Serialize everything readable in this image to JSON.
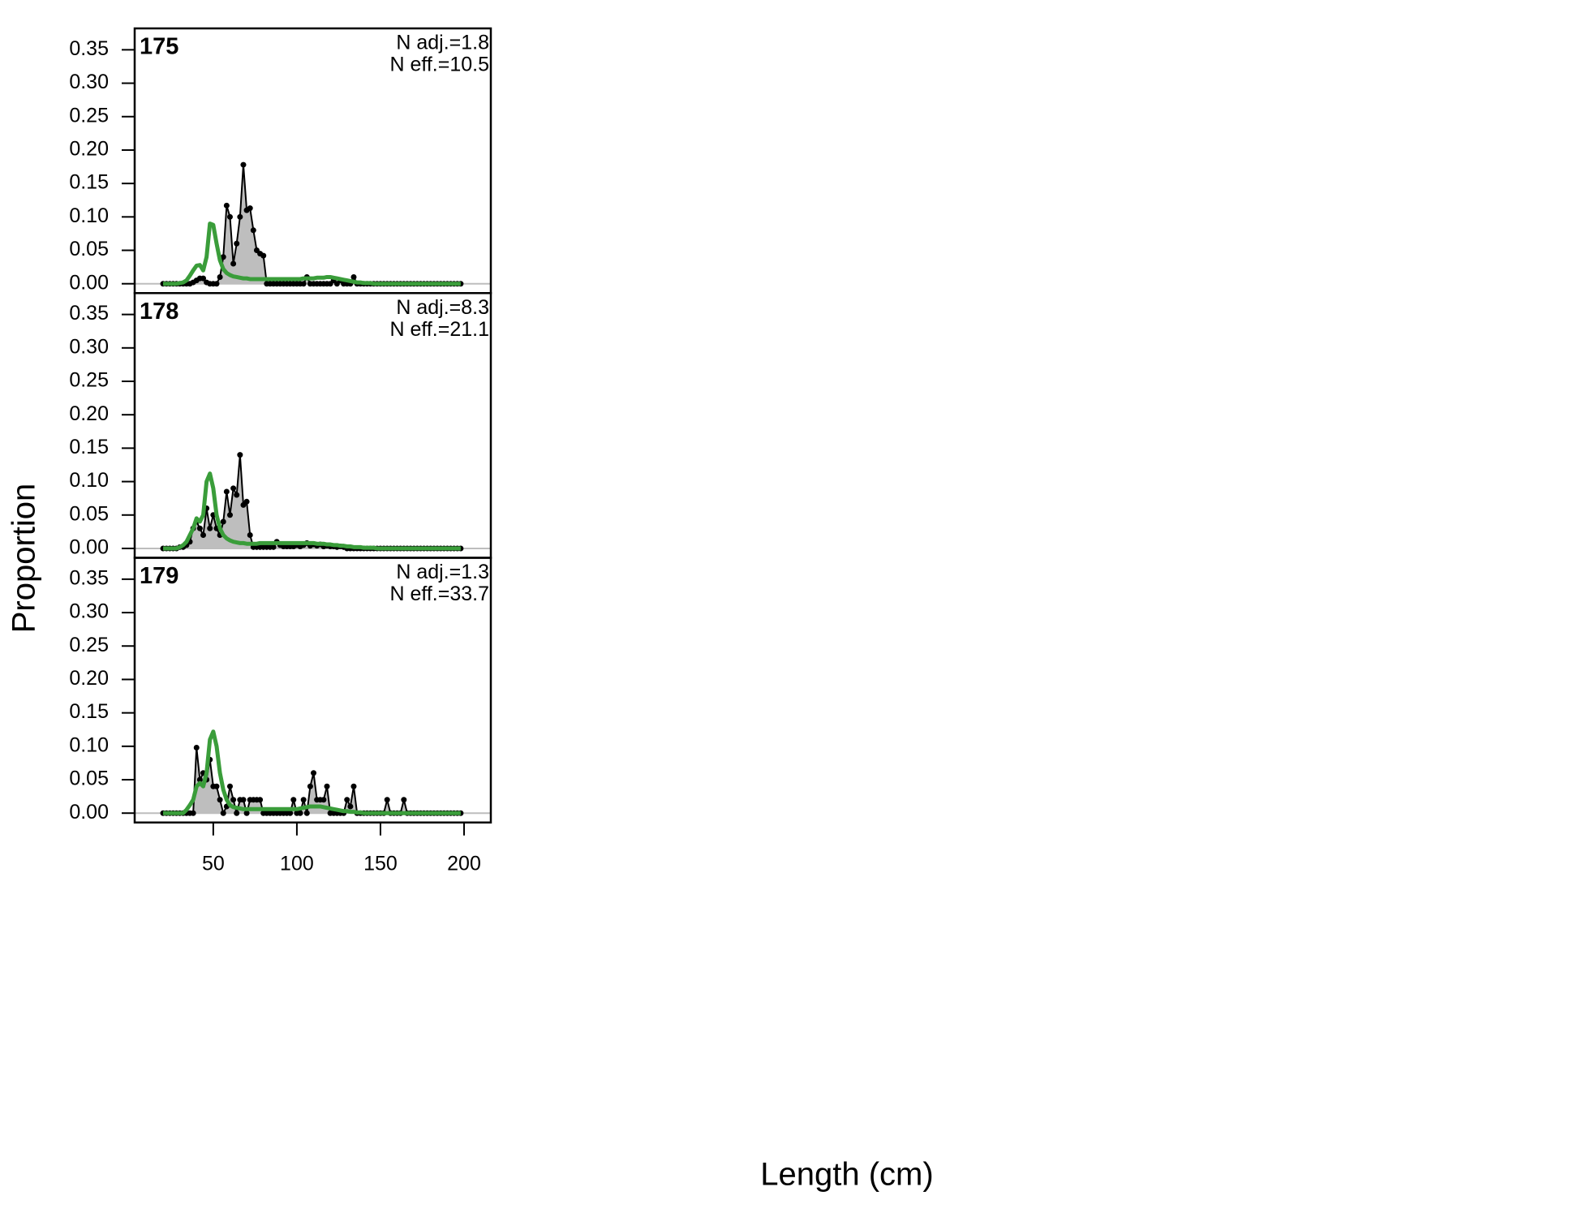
{
  "chart_data": [
    {
      "type": "line",
      "title": "175",
      "annotations": [
        "N adj.=1.8",
        "N eff.=10.5"
      ],
      "xlabel": "Length (cm)",
      "ylabel": "Proportion",
      "x": [
        20,
        22,
        24,
        26,
        28,
        30,
        32,
        34,
        36,
        38,
        40,
        42,
        44,
        46,
        48,
        50,
        52,
        54,
        56,
        58,
        60,
        62,
        64,
        66,
        68,
        70,
        72,
        74,
        76,
        78,
        80,
        82,
        84,
        86,
        88,
        90,
        92,
        94,
        96,
        98,
        100,
        102,
        104,
        106,
        108,
        110,
        112,
        114,
        116,
        118,
        120,
        122,
        124,
        126,
        128,
        130,
        132,
        134,
        136,
        138,
        140,
        142,
        144,
        146,
        148,
        150,
        152,
        154,
        156,
        158,
        160,
        162,
        164,
        166,
        168,
        170,
        172,
        174,
        176,
        178,
        180,
        182,
        184,
        186,
        188,
        190,
        192,
        194,
        196,
        198
      ],
      "series": [
        {
          "color": "#000000",
          "fill": "#bebebe",
          "values": [
            0,
            0,
            0,
            0,
            0,
            0,
            0,
            0,
            0,
            0.002,
            0.005,
            0.008,
            0.008,
            0.002,
            0,
            0,
            0,
            0.01,
            0.04,
            0.117,
            0.1,
            0.03,
            0.06,
            0.1,
            0.178,
            0.11,
            0.113,
            0.08,
            0.05,
            0.045,
            0.042,
            0,
            0,
            0,
            0,
            0,
            0,
            0,
            0,
            0,
            0,
            0,
            0,
            0.01,
            0,
            0,
            0,
            0,
            0,
            0,
            0,
            0.005,
            0,
            0.005,
            0,
            0,
            0,
            0.01,
            0,
            0,
            0,
            0,
            0,
            0,
            0,
            0,
            0,
            0,
            0,
            0,
            0,
            0,
            0,
            0,
            0,
            0,
            0,
            0,
            0,
            0,
            0,
            0,
            0,
            0,
            0,
            0,
            0,
            0,
            0,
            0
          ]
        },
        {
          "color": "#3a9d3a",
          "values": [
            0,
            0,
            0,
            0,
            0,
            0.001,
            0.002,
            0.005,
            0.012,
            0.02,
            0.027,
            0.028,
            0.02,
            0.04,
            0.09,
            0.088,
            0.06,
            0.035,
            0.022,
            0.016,
            0.013,
            0.011,
            0.01,
            0.009,
            0.008,
            0.008,
            0.007,
            0.007,
            0.007,
            0.007,
            0.007,
            0.007,
            0.007,
            0.007,
            0.007,
            0.007,
            0.007,
            0.007,
            0.007,
            0.007,
            0.007,
            0.007,
            0.008,
            0.008,
            0.008,
            0.008,
            0.009,
            0.009,
            0.009,
            0.01,
            0.01,
            0.009,
            0.008,
            0.007,
            0.006,
            0.005,
            0.004,
            0.003,
            0.002,
            0.002,
            0.001,
            0.001,
            0.001,
            0,
            0,
            0,
            0,
            0,
            0,
            0,
            0,
            0,
            0,
            0,
            0,
            0,
            0,
            0,
            0,
            0,
            0,
            0,
            0,
            0,
            0,
            0,
            0,
            0,
            0,
            0
          ]
        }
      ],
      "xlim": [
        3,
        216
      ],
      "ylim": [
        -0.014,
        0.382
      ],
      "yticks": [
        {
          "value": 0,
          "label": "0.00"
        },
        {
          "value": 0.05,
          "label": "0.05"
        },
        {
          "value": 0.1,
          "label": "0.10"
        },
        {
          "value": 0.15,
          "label": "0.15"
        },
        {
          "value": 0.2,
          "label": "0.20"
        },
        {
          "value": 0.25,
          "label": "0.25"
        },
        {
          "value": 0.3,
          "label": "0.30"
        },
        {
          "value": 0.35,
          "label": "0.35"
        }
      ]
    },
    {
      "type": "line",
      "title": "178",
      "annotations": [
        "N adj.=8.3",
        "N eff.=21.1"
      ],
      "x": [
        20,
        22,
        24,
        26,
        28,
        30,
        32,
        34,
        36,
        38,
        40,
        42,
        44,
        46,
        48,
        50,
        52,
        54,
        56,
        58,
        60,
        62,
        64,
        66,
        68,
        70,
        72,
        74,
        76,
        78,
        80,
        82,
        84,
        86,
        88,
        90,
        92,
        94,
        96,
        98,
        100,
        102,
        104,
        106,
        108,
        110,
        112,
        114,
        116,
        118,
        120,
        122,
        124,
        126,
        128,
        130,
        132,
        134,
        136,
        138,
        140,
        142,
        144,
        146,
        148,
        150,
        152,
        154,
        156,
        158,
        160,
        162,
        164,
        166,
        168,
        170,
        172,
        174,
        176,
        178,
        180,
        182,
        184,
        186,
        188,
        190,
        192,
        194,
        196,
        198
      ],
      "series": [
        {
          "color": "#000000",
          "fill": "#bebebe",
          "values": [
            0,
            0,
            0,
            0,
            0,
            0.002,
            0.002,
            0.005,
            0.01,
            0.03,
            0.04,
            0.03,
            0.02,
            0.06,
            0.03,
            0.05,
            0.03,
            0.02,
            0.04,
            0.085,
            0.05,
            0.09,
            0.08,
            0.14,
            0.065,
            0.07,
            0.02,
            0.002,
            0.002,
            0.002,
            0.002,
            0.002,
            0.002,
            0.002,
            0.01,
            0.005,
            0.003,
            0.003,
            0.003,
            0.003,
            0.005,
            0.003,
            0.005,
            0.008,
            0.004,
            0.006,
            0.004,
            0.006,
            0.003,
            0.004,
            0.003,
            0.003,
            0.002,
            0.003,
            0.002,
            0,
            0,
            0,
            0,
            0,
            0,
            0,
            0,
            0,
            0,
            0,
            0,
            0,
            0,
            0,
            0,
            0,
            0,
            0,
            0,
            0,
            0,
            0,
            0,
            0,
            0,
            0,
            0,
            0,
            0,
            0,
            0,
            0,
            0,
            0
          ]
        },
        {
          "color": "#3a9d3a",
          "values": [
            0,
            0,
            0,
            0,
            0,
            0.002,
            0.005,
            0.01,
            0.02,
            0.03,
            0.045,
            0.04,
            0.05,
            0.1,
            0.112,
            0.09,
            0.05,
            0.03,
            0.02,
            0.015,
            0.012,
            0.01,
            0.009,
            0.008,
            0.008,
            0.007,
            0.007,
            0.007,
            0.007,
            0.008,
            0.008,
            0.008,
            0.008,
            0.008,
            0.008,
            0.008,
            0.008,
            0.008,
            0.008,
            0.008,
            0.008,
            0.008,
            0.008,
            0.008,
            0.008,
            0.008,
            0.007,
            0.007,
            0.007,
            0.006,
            0.006,
            0.005,
            0.005,
            0.004,
            0.004,
            0.003,
            0.003,
            0.002,
            0.002,
            0.002,
            0.001,
            0.001,
            0.001,
            0.001,
            0,
            0,
            0,
            0,
            0,
            0,
            0,
            0,
            0,
            0,
            0,
            0,
            0,
            0,
            0,
            0,
            0,
            0,
            0,
            0,
            0,
            0,
            0,
            0,
            0,
            0
          ]
        }
      ],
      "xlim": [
        3,
        216
      ],
      "ylim": [
        -0.014,
        0.382
      ],
      "yticks": [
        {
          "value": 0,
          "label": "0.00"
        },
        {
          "value": 0.05,
          "label": "0.05"
        },
        {
          "value": 0.1,
          "label": "0.10"
        },
        {
          "value": 0.15,
          "label": "0.15"
        },
        {
          "value": 0.2,
          "label": "0.20"
        },
        {
          "value": 0.25,
          "label": "0.25"
        },
        {
          "value": 0.3,
          "label": "0.30"
        },
        {
          "value": 0.35,
          "label": "0.35"
        }
      ]
    },
    {
      "type": "line",
      "title": "179",
      "annotations": [
        "N adj.=1.3",
        "N eff.=33.7"
      ],
      "x": [
        20,
        22,
        24,
        26,
        28,
        30,
        32,
        34,
        36,
        38,
        40,
        42,
        44,
        46,
        48,
        50,
        52,
        54,
        56,
        58,
        60,
        62,
        64,
        66,
        68,
        70,
        72,
        74,
        76,
        78,
        80,
        82,
        84,
        86,
        88,
        90,
        92,
        94,
        96,
        98,
        100,
        102,
        104,
        106,
        108,
        110,
        112,
        114,
        116,
        118,
        120,
        122,
        124,
        126,
        128,
        130,
        132,
        134,
        136,
        138,
        140,
        142,
        144,
        146,
        148,
        150,
        152,
        154,
        156,
        158,
        160,
        162,
        164,
        166,
        168,
        170,
        172,
        174,
        176,
        178,
        180,
        182,
        184,
        186,
        188,
        190,
        192,
        194,
        196,
        198
      ],
      "series": [
        {
          "color": "#000000",
          "fill": "#bebebe",
          "values": [
            0,
            0,
            0,
            0,
            0,
            0,
            0,
            0,
            0,
            0,
            0.098,
            0.05,
            0.06,
            0.05,
            0.08,
            0.04,
            0.04,
            0.02,
            0,
            0.01,
            0.04,
            0.02,
            0,
            0.02,
            0.02,
            0,
            0.02,
            0.02,
            0.02,
            0.02,
            0,
            0,
            0,
            0,
            0,
            0,
            0,
            0,
            0,
            0.02,
            0,
            0,
            0.02,
            0,
            0.04,
            0.06,
            0.02,
            0.02,
            0.02,
            0.04,
            0,
            0,
            0,
            0,
            0,
            0.02,
            0.01,
            0.04,
            0,
            0,
            0,
            0,
            0,
            0,
            0,
            0,
            0,
            0.02,
            0,
            0,
            0,
            0,
            0.02,
            0,
            0,
            0,
            0,
            0,
            0,
            0,
            0,
            0,
            0,
            0,
            0,
            0,
            0,
            0,
            0,
            0
          ]
        },
        {
          "color": "#3a9d3a",
          "values": [
            0,
            0,
            0,
            0,
            0,
            0,
            0,
            0.005,
            0.012,
            0.02,
            0.04,
            0.045,
            0.04,
            0.06,
            0.11,
            0.122,
            0.1,
            0.06,
            0.035,
            0.02,
            0.012,
            0.009,
            0.008,
            0.007,
            0.006,
            0.006,
            0.006,
            0.006,
            0.006,
            0.006,
            0.006,
            0.006,
            0.006,
            0.006,
            0.006,
            0.006,
            0.006,
            0.006,
            0.006,
            0.006,
            0.006,
            0.007,
            0.008,
            0.009,
            0.01,
            0.01,
            0.01,
            0.01,
            0.009,
            0.008,
            0.007,
            0.006,
            0.005,
            0.004,
            0.003,
            0.003,
            0.002,
            0.002,
            0.001,
            0.001,
            0,
            0,
            0,
            0,
            0,
            0,
            0,
            0,
            0,
            0,
            0,
            0,
            0,
            0,
            0,
            0,
            0,
            0,
            0,
            0,
            0,
            0,
            0,
            0,
            0,
            0,
            0,
            0,
            0,
            0
          ]
        }
      ],
      "xlim": [
        3,
        216
      ],
      "ylim": [
        -0.014,
        0.382
      ],
      "yticks": [
        {
          "value": 0,
          "label": "0.00"
        },
        {
          "value": 0.05,
          "label": "0.05"
        },
        {
          "value": 0.1,
          "label": "0.10"
        },
        {
          "value": 0.15,
          "label": "0.15"
        },
        {
          "value": 0.2,
          "label": "0.20"
        },
        {
          "value": 0.25,
          "label": "0.25"
        },
        {
          "value": 0.3,
          "label": "0.30"
        },
        {
          "value": 0.35,
          "label": "0.35"
        }
      ],
      "xticks": [
        50,
        100,
        150,
        200
      ]
    }
  ]
}
